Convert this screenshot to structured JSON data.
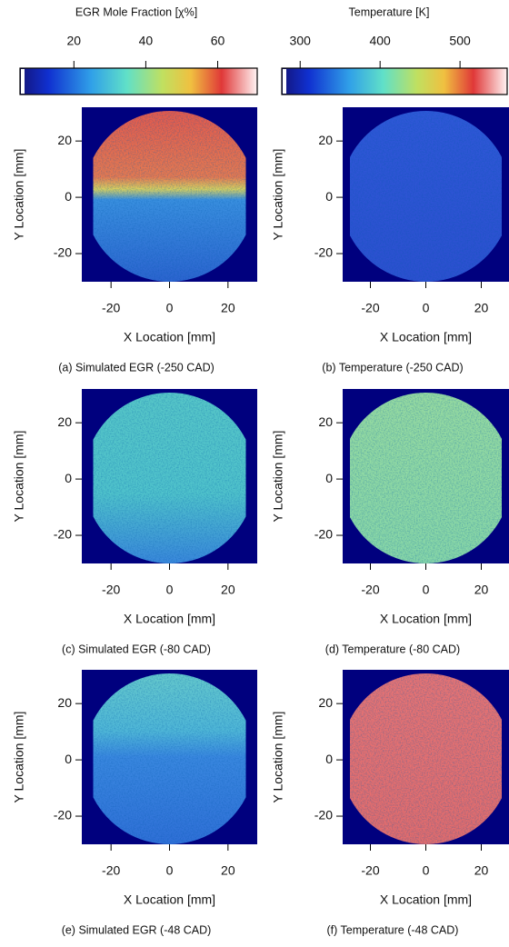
{
  "colorbars": [
    {
      "title": "EGR Mole Fraction [χ%]",
      "lim": [
        5,
        71
      ],
      "ticks": [
        20,
        40,
        60
      ]
    },
    {
      "title": "Temperature [K]",
      "lim": [
        277,
        559
      ],
      "ticks": [
        300,
        400,
        500
      ]
    }
  ],
  "panel_axes": {
    "xlim": [
      -30,
      30
    ],
    "ylim": [
      -30,
      32
    ]
  },
  "panels": [
    {
      "caption": "(a) Simulated EGR (-250 CAD)",
      "xlabel": "X Location [mm]",
      "ylabel": "Y Location [mm]",
      "xticks": [
        -20,
        0,
        20
      ],
      "yticks": [
        20,
        0,
        -20
      ]
    },
    {
      "caption": "(b) Temperature (-250 CAD)",
      "xlabel": "X Location [mm]",
      "ylabel": "Y Location [mm]",
      "xticks": [
        -20,
        0,
        20
      ],
      "yticks": [
        20,
        0,
        -20
      ]
    },
    {
      "caption": "(c) Simulated EGR (-80 CAD)",
      "xlabel": "X Location [mm]",
      "ylabel": "Y Location [mm]",
      "xticks": [
        -20,
        0,
        20
      ],
      "yticks": [
        20,
        0,
        -20
      ]
    },
    {
      "caption": "(d) Temperature (-80 CAD)",
      "xlabel": "X Location [mm]",
      "ylabel": "Y Location [mm]",
      "xticks": [
        -20,
        0,
        20
      ],
      "yticks": [
        20,
        0,
        -20
      ]
    },
    {
      "caption": "(e) Simulated EGR (-48 CAD)",
      "xlabel": "X Location [mm]",
      "ylabel": "Y Location [mm]",
      "xticks": [
        -20,
        0,
        20
      ],
      "yticks": [
        20,
        0,
        -20
      ]
    },
    {
      "caption": "(f) Temperature (-48 CAD)",
      "xlabel": "X Location [mm]",
      "ylabel": "Y Location [mm]",
      "xticks": [
        -20,
        0,
        20
      ],
      "yticks": [
        20,
        0,
        -20
      ]
    }
  ]
}
